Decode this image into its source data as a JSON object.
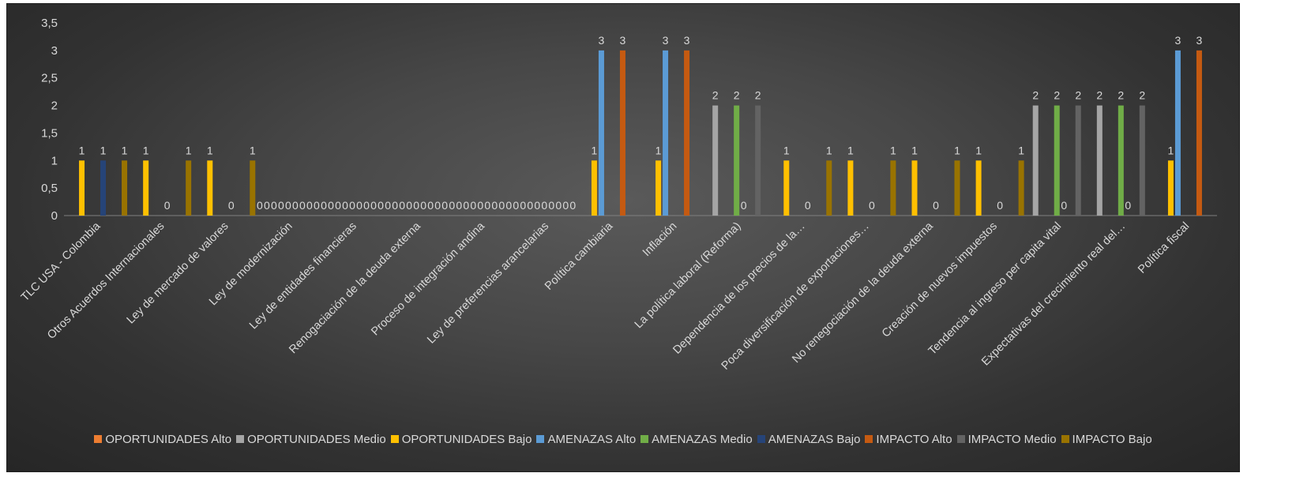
{
  "chart_data": {
    "type": "bar",
    "title": "",
    "xlabel": "",
    "ylabel": "",
    "ylim": [
      0,
      3.5
    ],
    "yticks": [
      "0",
      "0,5",
      "1",
      "1,5",
      "2",
      "2,5",
      "3",
      "3,5"
    ],
    "grid": false,
    "legend_position": "bottom",
    "categories": [
      "TLC USA - Colombia",
      "Otros Acuerdos Internacionales",
      "Ley de mercado de valores",
      "Ley de modernización",
      "Ley de entidades financieras",
      "Renogaciación de la deuda externa",
      "Proceso de integración andina",
      "Ley de preferencias arancelarias",
      "Política cambiaria",
      "Inflación",
      "La política laboral (Reforma)",
      "Dependencia de los precios de la…",
      "Poca diversificación de exportaciones…",
      "No renegociación de la deuda externa",
      "Creación de nuevos impuestos",
      "Tendencia al ingreso per capita vital",
      "Expectativas del crecimiento real del…",
      "Política fiscal"
    ],
    "series": [
      {
        "name": "OPORTUNIDADES Alto",
        "color": "#ed7d31",
        "values": [
          null,
          null,
          null,
          0,
          0,
          0,
          0,
          0,
          null,
          null,
          null,
          null,
          null,
          null,
          null,
          null,
          null,
          null
        ]
      },
      {
        "name": "OPORTUNIDADES Medio",
        "color": "#a5a5a5",
        "values": [
          null,
          null,
          null,
          0,
          0,
          0,
          0,
          0,
          null,
          null,
          2,
          null,
          null,
          null,
          null,
          2,
          2,
          null
        ]
      },
      {
        "name": "OPORTUNIDADES Bajo",
        "color": "#ffc000",
        "values": [
          1,
          1,
          1,
          0,
          0,
          0,
          0,
          0,
          1,
          1,
          null,
          1,
          1,
          1,
          1,
          null,
          null,
          1
        ]
      },
      {
        "name": "AMENAZAS Alto",
        "color": "#5b9bd5",
        "values": [
          null,
          null,
          null,
          0,
          0,
          0,
          0,
          0,
          3,
          3,
          null,
          null,
          null,
          null,
          null,
          null,
          null,
          3
        ]
      },
      {
        "name": "AMENAZAS Medio",
        "color": "#70ad47",
        "values": [
          null,
          null,
          null,
          0,
          0,
          0,
          0,
          0,
          null,
          null,
          2,
          null,
          null,
          null,
          null,
          2,
          2,
          null
        ]
      },
      {
        "name": "AMENAZAS Bajo",
        "color": "#264478",
        "values": [
          1,
          0,
          0,
          0,
          0,
          0,
          0,
          0,
          null,
          null,
          0,
          0,
          0,
          0,
          0,
          0,
          0,
          null
        ]
      },
      {
        "name": "IMPACTO Alto",
        "color": "#c55a11",
        "values": [
          null,
          null,
          null,
          0,
          0,
          0,
          0,
          0,
          3,
          3,
          null,
          null,
          null,
          null,
          null,
          null,
          null,
          3
        ]
      },
      {
        "name": "IMPACTO Medio",
        "color": "#636363",
        "values": [
          null,
          null,
          null,
          0,
          0,
          0,
          0,
          0,
          null,
          null,
          2,
          null,
          null,
          null,
          null,
          2,
          2,
          null
        ]
      },
      {
        "name": "IMPACTO Bajo",
        "color": "#997300",
        "values": [
          1,
          1,
          1,
          0,
          0,
          0,
          0,
          0,
          null,
          null,
          null,
          1,
          1,
          1,
          1,
          null,
          null,
          null
        ]
      }
    ]
  }
}
